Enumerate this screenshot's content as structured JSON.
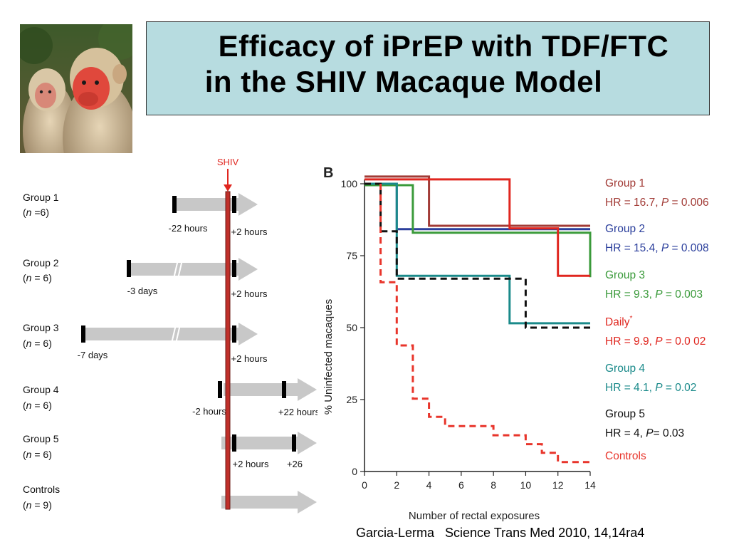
{
  "title": {
    "line1": "Efficacy of iPrEP with TDF/FTC",
    "line2": "in the SHIV Macaque Model"
  },
  "citation": "Garcia-Lerma   Science Trans Med 2010, 14,14ra4",
  "photo": {
    "description_icon": "macaque-photo"
  },
  "regimen": {
    "challenge_label": "SHIV",
    "groups": [
      {
        "name": "Group 1",
        "n_prefix": "(",
        "n_italic": "n",
        "n_suffix": " =6)",
        "pre_label": "-22 hours",
        "post_label": "+2 hours"
      },
      {
        "name": "Group 2",
        "n_prefix": "(",
        "n_italic": "n",
        "n_suffix": " = 6)",
        "pre_label": "-3 days",
        "post_label": "+2 hours"
      },
      {
        "name": "Group 3",
        "n_prefix": "(",
        "n_italic": "n",
        "n_suffix": " = 6)",
        "pre_label": "-7 days",
        "post_label": "+2 hours"
      },
      {
        "name": "Group 4",
        "n_prefix": "(",
        "n_italic": "n",
        "n_suffix": " = 6)",
        "pre_label": "-2 hours",
        "post_label": "+22 hours"
      },
      {
        "name": "Group 5",
        "n_prefix": "(",
        "n_italic": "n",
        "n_suffix": " = 6)",
        "pre_label": "+2 hours",
        "post_label": "+26"
      },
      {
        "name": "Controls",
        "n_prefix": "(",
        "n_italic": "n",
        "n_suffix": " = 9)",
        "pre_label": "",
        "post_label": ""
      }
    ]
  },
  "chart_data": {
    "type": "line",
    "panel_label": "B",
    "xlabel": "Number of rectal exposures",
    "ylabel": "% Uninfected macaques",
    "xlim": [
      0,
      14
    ],
    "ylim": [
      0,
      100
    ],
    "xticks": [
      0,
      2,
      4,
      6,
      8,
      10,
      12,
      14
    ],
    "yticks": [
      0,
      25,
      50,
      75,
      100
    ],
    "step": true,
    "series": [
      {
        "name": "Group 1",
        "stat": "HR = 16.7, P = 0.006",
        "stat_pre": "HR = 16.7, ",
        "stat_p": "P",
        "stat_post": " = 0.006",
        "color": "#a23b36",
        "dash": false,
        "points": [
          [
            0,
            102.5
          ],
          [
            4,
            102.5
          ],
          [
            4,
            85.4
          ],
          [
            14,
            85.4
          ]
        ]
      },
      {
        "name": "Group 2",
        "stat": "HR = 15.4, P = 0.008",
        "stat_pre": "HR = 15.4, ",
        "stat_p": "P",
        "stat_post": " = 0.008",
        "color": "#2b3f9c",
        "dash": false,
        "points": [
          [
            0,
            100
          ],
          [
            2,
            100
          ],
          [
            2,
            84.2
          ],
          [
            14,
            84.2
          ]
        ]
      },
      {
        "name": "Group 3",
        "stat": "HR = 9.3, P = 0.003",
        "stat_pre": "HR = 9.3, ",
        "stat_p": "P",
        "stat_post": " = 0.003",
        "color": "#3a9a3a",
        "dash": false,
        "points": [
          [
            0,
            99.5
          ],
          [
            3,
            99.5
          ],
          [
            3,
            83
          ],
          [
            14,
            83
          ],
          [
            14,
            67.5
          ]
        ]
      },
      {
        "name": "Daily",
        "name_sup": "*",
        "stat": "HR = 9.9, P = 0.0 02",
        "stat_pre": "HR = 9.9, ",
        "stat_p": "P",
        "stat_post": " = 0.0 02",
        "color": "#e0261f",
        "dash": false,
        "points": [
          [
            0,
            101.5
          ],
          [
            9,
            101.5
          ],
          [
            9,
            84.5
          ],
          [
            12,
            84.5
          ],
          [
            12,
            68
          ],
          [
            14,
            68
          ]
        ]
      },
      {
        "name": "Group 4",
        "stat": "HR = 4.1, P = 0.02",
        "stat_pre": "HR = 4.1, ",
        "stat_p": "P",
        "stat_post": " = 0.02",
        "color": "#1a8a8a",
        "dash": false,
        "points": [
          [
            0,
            100
          ],
          [
            2,
            100
          ],
          [
            2,
            68
          ],
          [
            9,
            68
          ],
          [
            9,
            51.5
          ],
          [
            14,
            51.5
          ]
        ]
      },
      {
        "name": "Group 5",
        "stat": "HR = 4, P= 0.03",
        "stat_pre": "HR = 4, ",
        "stat_p": "P",
        "stat_post": "= 0.03",
        "color": "#111111",
        "dash": true,
        "points": [
          [
            0,
            100
          ],
          [
            1,
            100
          ],
          [
            1,
            83.5
          ],
          [
            2,
            83.5
          ],
          [
            2,
            67
          ],
          [
            10,
            67
          ],
          [
            10,
            50
          ],
          [
            14,
            50
          ]
        ]
      },
      {
        "name": "Controls",
        "stat": "",
        "color": "#e8352b",
        "dash": true,
        "points": [
          [
            1,
            100
          ],
          [
            1,
            65.8
          ],
          [
            2,
            65.8
          ],
          [
            2,
            43.8
          ],
          [
            3,
            43.8
          ],
          [
            3,
            25.3
          ],
          [
            4,
            25.3
          ],
          [
            4,
            19
          ],
          [
            5,
            19
          ],
          [
            5,
            15.8
          ],
          [
            8,
            15.8
          ],
          [
            8,
            12.6
          ],
          [
            10,
            12.6
          ],
          [
            10,
            9.5
          ],
          [
            11,
            9.5
          ],
          [
            11,
            6.5
          ],
          [
            12,
            6.5
          ],
          [
            12,
            3.3
          ],
          [
            14,
            3.3
          ]
        ]
      }
    ]
  }
}
